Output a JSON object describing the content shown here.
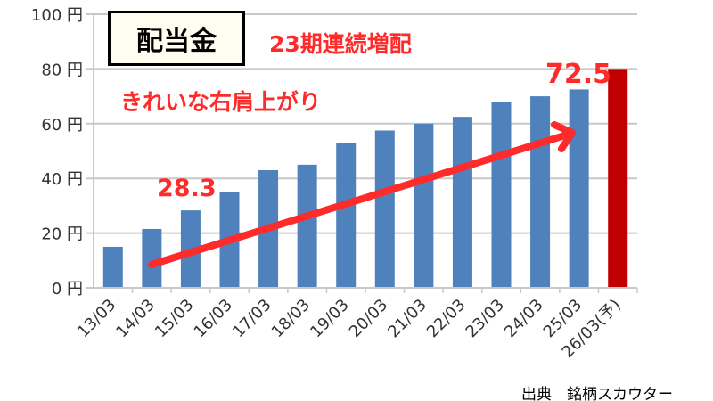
{
  "chart_data": {
    "type": "bar",
    "title": "配当金",
    "categories": [
      "13/03",
      "14/03",
      "15/03",
      "16/03",
      "17/03",
      "18/03",
      "19/03",
      "20/03",
      "21/03",
      "22/03",
      "23/03",
      "24/03",
      "25/03",
      "26/03(予)"
    ],
    "values": [
      15,
      21.5,
      28.3,
      35,
      43,
      45,
      53,
      57.5,
      60,
      62.5,
      68,
      70,
      72.5,
      80
    ],
    "forecast_index": 13,
    "yticks": [
      "0 円",
      "20 円",
      "40 円",
      "60 円",
      "80 円",
      "100 円"
    ],
    "ylim": [
      0,
      100
    ],
    "grid": true,
    "colors": {
      "bar": "#4f81bd",
      "forecast": "#c00000",
      "annotation": "#ff2a2a"
    },
    "annotations": {
      "streak": "23期連続増配",
      "trend": "きれいな右肩上がり",
      "label_15": "28.3",
      "label_25": "72.5"
    },
    "source": "出典　銘柄スカウター"
  }
}
